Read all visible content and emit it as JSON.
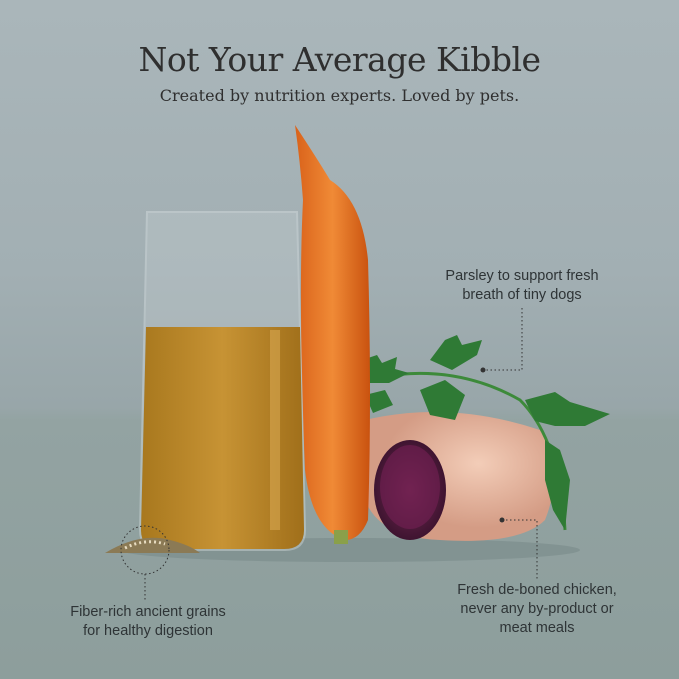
{
  "header": {
    "title": "Not Your Average Kibble",
    "subtitle": "Created by nutrition experts. Loved by pets."
  },
  "callouts": {
    "parsley": {
      "line1": "Parsley to support fresh",
      "line2": "breath of tiny dogs"
    },
    "chicken": {
      "line1": "Fresh de-boned chicken,",
      "line2": "never any by-product or",
      "line3": "meat meals"
    },
    "grains": {
      "line1": "Fiber-rich ancient grains",
      "line2": "for healthy digestion"
    }
  }
}
